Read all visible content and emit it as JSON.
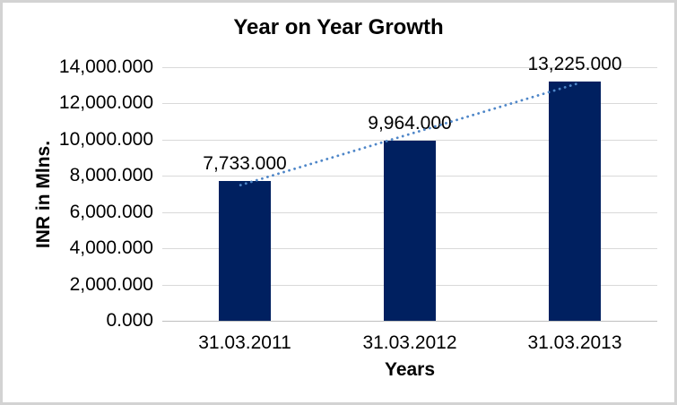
{
  "chart_data": {
    "type": "bar",
    "title": "Year on Year Growth",
    "xlabel": "Years",
    "ylabel": "INR in Mlns.",
    "categories": [
      "31.03.2011",
      "31.03.2012",
      "31.03.2013"
    ],
    "values": [
      7733.0,
      9964.0,
      13225.0
    ],
    "data_labels": [
      "7,733.000",
      "9,964.000",
      "13,225.000"
    ],
    "ylim": [
      0,
      14000
    ],
    "ytick_step": 2000,
    "ytick_labels": [
      "0.000",
      "2,000.000",
      "4,000.000",
      "6,000.000",
      "8,000.000",
      "10,000.000",
      "12,000.000",
      "14,000.000"
    ],
    "grid": true,
    "legend_position": "none",
    "colors": {
      "bar": "#002060",
      "trendline": "#4e86c8",
      "gridline": "#d9d9d9",
      "axis_line": "#bfbfbf",
      "text": "#000000"
    },
    "trendline": {
      "kind": "linear",
      "style": "dotted"
    }
  }
}
